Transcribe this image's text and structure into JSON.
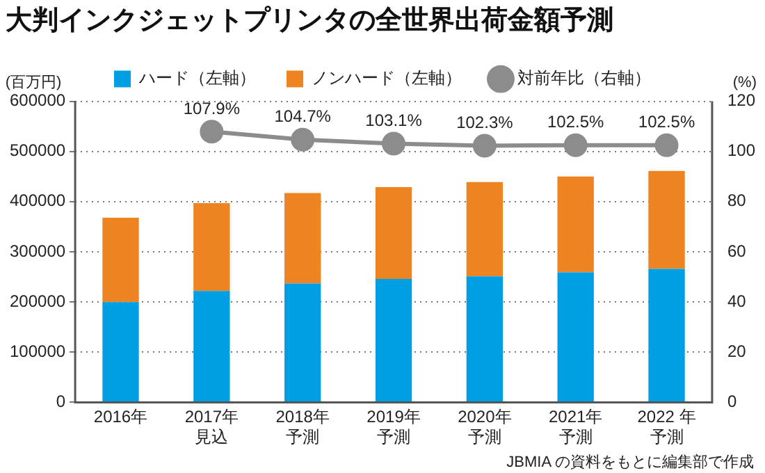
{
  "chart_data": {
    "type": "bar",
    "title": "大判インクジェットプリンタの全世界出荷金額予測",
    "ylabel": "(百万円)",
    "y2label": "(%)",
    "categories": [
      "2016年",
      "2017年見込",
      "2018年予測",
      "2019年予測",
      "2020年予測",
      "2021年予測",
      "2022 年予測"
    ],
    "stacked": true,
    "series": [
      {
        "name": "ハード（左軸）",
        "color": "#009fe3",
        "values": [
          200000,
          222000,
          237000,
          246000,
          251000,
          259000,
          266000
        ]
      },
      {
        "name": "ノンハード（左軸）",
        "color": "#ee8421",
        "values": [
          168000,
          175000,
          180000,
          183000,
          188000,
          191000,
          195000
        ]
      },
      {
        "name": "対前年比（右軸）",
        "type": "line",
        "axis": "y2",
        "color": "#8c8c8c",
        "marker": "circle",
        "values": [
          null,
          107.9,
          104.7,
          103.1,
          102.3,
          102.5,
          102.5
        ],
        "value_labels": [
          null,
          "107.9%",
          "104.7%",
          "103.1%",
          "102.3%",
          "102.5%",
          "102.5%"
        ]
      }
    ],
    "ylim": [
      0,
      600000
    ],
    "yticks": [
      0,
      100000,
      200000,
      300000,
      400000,
      500000,
      600000
    ],
    "y2lim": [
      0,
      120
    ],
    "y2ticks": [
      0,
      20,
      40,
      60,
      80,
      100,
      120
    ],
    "grid": "y",
    "legend": "top",
    "annotations": [
      "JBMIA の資料をもとに編集部で作成"
    ]
  }
}
